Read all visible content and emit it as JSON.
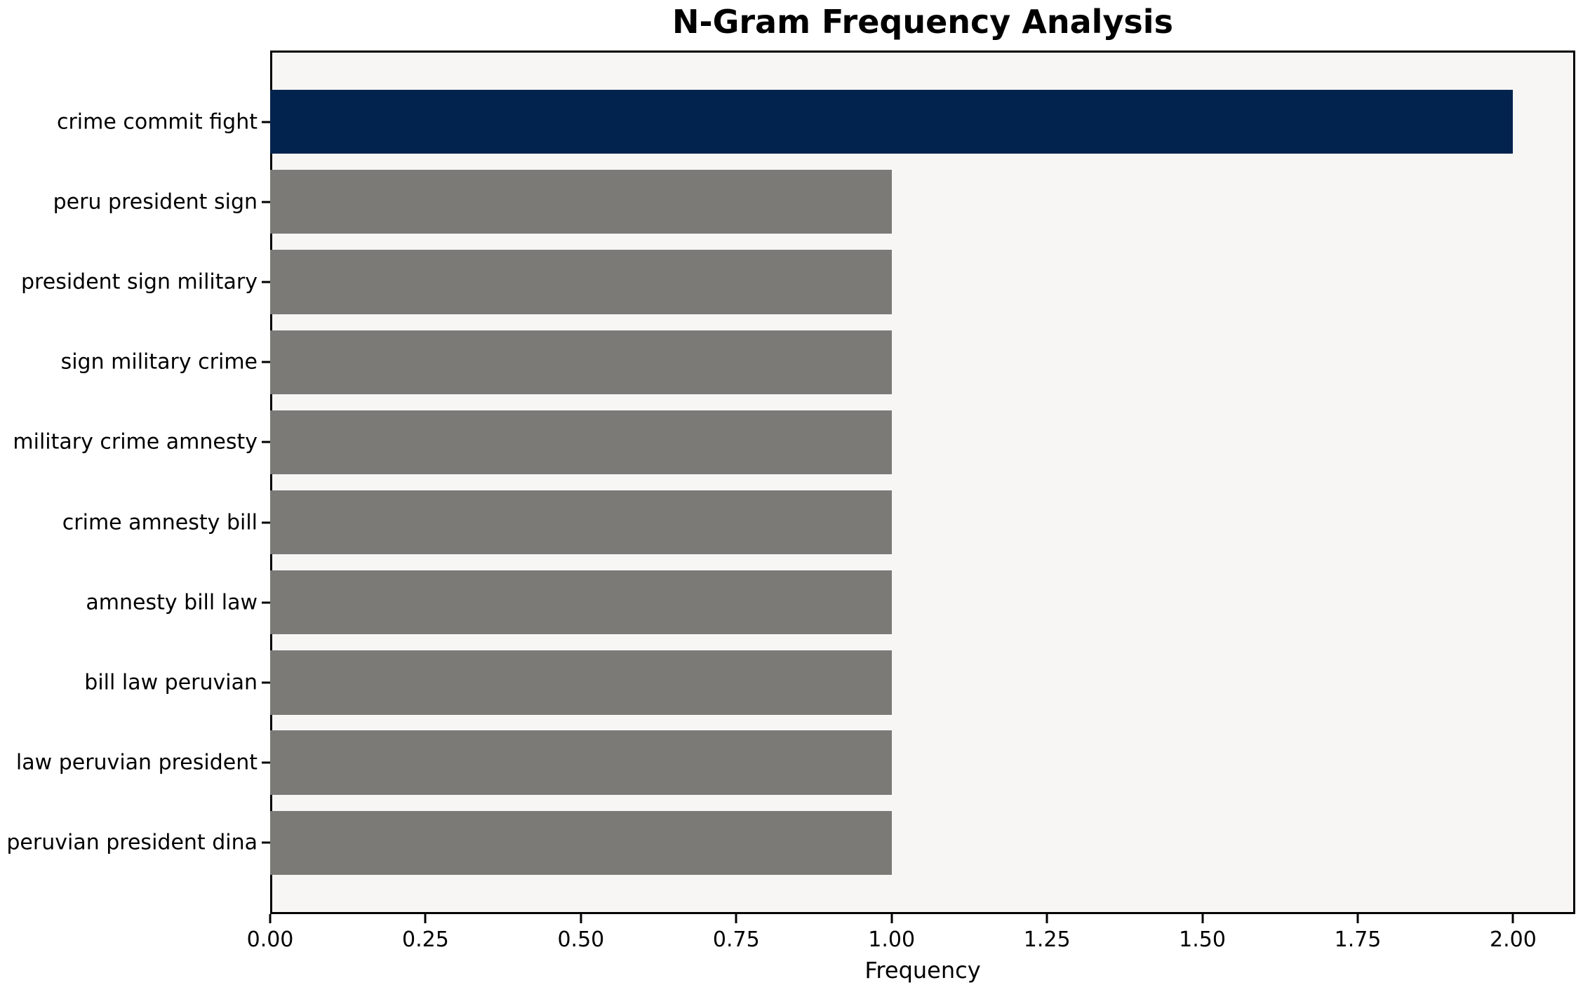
{
  "chart_data": {
    "type": "bar",
    "orientation": "horizontal",
    "title": "N-Gram Frequency Analysis",
    "xlabel": "Frequency",
    "ylabel": "",
    "categories": [
      "crime commit fight",
      "peru president sign",
      "president sign military",
      "sign military crime",
      "military crime amnesty",
      "crime amnesty bill",
      "amnesty bill law",
      "bill law peruvian",
      "law peruvian president",
      "peruvian president dina"
    ],
    "values": [
      2,
      1,
      1,
      1,
      1,
      1,
      1,
      1,
      1,
      1
    ],
    "xlim": [
      0,
      2.1
    ],
    "xticks": [
      "0.00",
      "0.25",
      "0.50",
      "0.75",
      "1.00",
      "1.25",
      "1.50",
      "1.75",
      "2.00"
    ],
    "xtick_values": [
      0,
      0.25,
      0.5,
      0.75,
      1.0,
      1.25,
      1.5,
      1.75,
      2.0
    ],
    "grid": "off",
    "legend": "none",
    "colors": {
      "highlight_bar": "#02234d",
      "default_bar": "#7b7a77",
      "plot_background": "#f7f6f5",
      "spine": "#000000",
      "text": "#000000"
    }
  }
}
